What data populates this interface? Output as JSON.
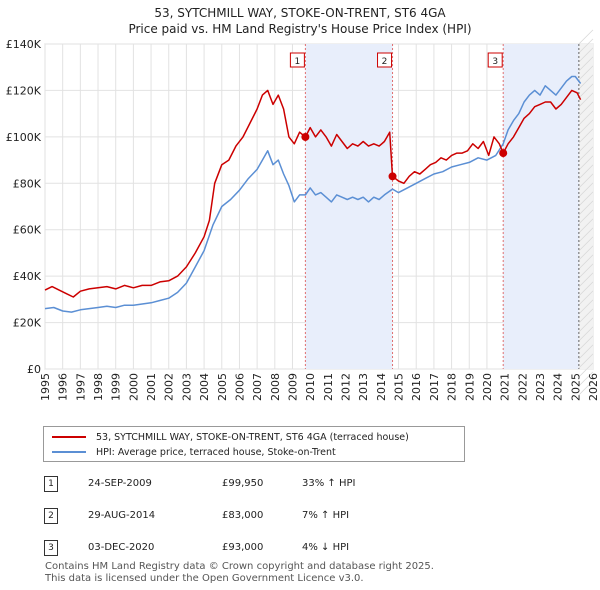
{
  "header": {
    "title_line1": "53, SYTCHMILL WAY, STOKE-ON-TRENT, ST6 4GA",
    "title_line2": "Price paid vs. HM Land Registry's House Price Index (HPI)"
  },
  "chart_data": {
    "type": "line",
    "x_range": [
      1995,
      2026
    ],
    "ylim": [
      0,
      140000
    ],
    "y_ticks": [
      {
        "value": 0,
        "label": "£0"
      },
      {
        "value": 20000,
        "label": "£20K"
      },
      {
        "value": 40000,
        "label": "£40K"
      },
      {
        "value": 60000,
        "label": "£60K"
      },
      {
        "value": 80000,
        "label": "£80K"
      },
      {
        "value": 100000,
        "label": "£100K"
      },
      {
        "value": 120000,
        "label": "£120K"
      },
      {
        "value": 140000,
        "label": "£140K"
      }
    ],
    "x_ticks": [
      "1995",
      "1996",
      "1997",
      "1998",
      "1999",
      "2000",
      "2001",
      "2002",
      "2003",
      "2004",
      "2005",
      "2006",
      "2007",
      "2008",
      "2009",
      "2010",
      "2011",
      "2012",
      "2013",
      "2014",
      "2015",
      "2016",
      "2017",
      "2018",
      "2019",
      "2020",
      "2021",
      "2022",
      "2023",
      "2024",
      "2025",
      "2026"
    ],
    "grid": true,
    "forecast_start": 2025.2,
    "shaded_periods": [
      [
        2009.73,
        2014.66
      ],
      [
        2020.92,
        2025.2
      ]
    ],
    "sale_markers": [
      {
        "label": "1",
        "x": 2009.73,
        "y": 99950
      },
      {
        "label": "2",
        "x": 2014.66,
        "y": 83000
      },
      {
        "label": "3",
        "x": 2020.92,
        "y": 93000
      }
    ],
    "series": [
      {
        "name": "53, SYTCHMILL WAY, STOKE-ON-TRENT, ST6 4GA (terraced house)",
        "color": "#cc0000",
        "points": [
          [
            1995.0,
            34000
          ],
          [
            1995.4,
            35500
          ],
          [
            1995.8,
            34000
          ],
          [
            1996.2,
            32500
          ],
          [
            1996.6,
            31000
          ],
          [
            1997.0,
            33500
          ],
          [
            1997.5,
            34500
          ],
          [
            1998.0,
            35000
          ],
          [
            1998.5,
            35500
          ],
          [
            1999.0,
            34500
          ],
          [
            1999.5,
            36000
          ],
          [
            2000.0,
            35000
          ],
          [
            2000.5,
            36000
          ],
          [
            2001.0,
            36000
          ],
          [
            2001.5,
            37500
          ],
          [
            2002.0,
            38000
          ],
          [
            2002.5,
            40000
          ],
          [
            2003.0,
            44000
          ],
          [
            2003.5,
            50000
          ],
          [
            2004.0,
            57000
          ],
          [
            2004.3,
            64000
          ],
          [
            2004.6,
            80000
          ],
          [
            2005.0,
            88000
          ],
          [
            2005.4,
            90000
          ],
          [
            2005.8,
            96000
          ],
          [
            2006.2,
            100000
          ],
          [
            2006.6,
            106000
          ],
          [
            2007.0,
            112000
          ],
          [
            2007.3,
            118000
          ],
          [
            2007.6,
            120000
          ],
          [
            2007.9,
            114000
          ],
          [
            2008.2,
            118000
          ],
          [
            2008.5,
            112000
          ],
          [
            2008.8,
            100000
          ],
          [
            2009.1,
            97000
          ],
          [
            2009.4,
            102000
          ],
          [
            2009.73,
            99950
          ],
          [
            2010.0,
            104000
          ],
          [
            2010.3,
            100000
          ],
          [
            2010.6,
            103000
          ],
          [
            2010.9,
            100000
          ],
          [
            2011.2,
            96000
          ],
          [
            2011.5,
            101000
          ],
          [
            2011.8,
            98000
          ],
          [
            2012.1,
            95000
          ],
          [
            2012.4,
            97000
          ],
          [
            2012.7,
            96000
          ],
          [
            2013.0,
            98000
          ],
          [
            2013.3,
            96000
          ],
          [
            2013.6,
            97000
          ],
          [
            2013.9,
            96000
          ],
          [
            2014.2,
            98000
          ],
          [
            2014.5,
            102000
          ],
          [
            2014.66,
            83000
          ],
          [
            2015.0,
            81000
          ],
          [
            2015.3,
            80000
          ],
          [
            2015.6,
            83000
          ],
          [
            2015.9,
            85000
          ],
          [
            2016.2,
            84000
          ],
          [
            2016.5,
            86000
          ],
          [
            2016.8,
            88000
          ],
          [
            2017.1,
            89000
          ],
          [
            2017.4,
            91000
          ],
          [
            2017.7,
            90000
          ],
          [
            2018.0,
            92000
          ],
          [
            2018.3,
            93000
          ],
          [
            2018.6,
            93000
          ],
          [
            2018.9,
            94000
          ],
          [
            2019.2,
            97000
          ],
          [
            2019.5,
            95000
          ],
          [
            2019.8,
            98000
          ],
          [
            2020.1,
            92000
          ],
          [
            2020.4,
            100000
          ],
          [
            2020.7,
            97000
          ],
          [
            2020.92,
            93000
          ],
          [
            2021.2,
            97000
          ],
          [
            2021.5,
            100000
          ],
          [
            2021.8,
            104000
          ],
          [
            2022.1,
            108000
          ],
          [
            2022.4,
            110000
          ],
          [
            2022.7,
            113000
          ],
          [
            2023.0,
            114000
          ],
          [
            2023.3,
            115000
          ],
          [
            2023.6,
            115000
          ],
          [
            2023.9,
            112000
          ],
          [
            2024.2,
            114000
          ],
          [
            2024.5,
            117000
          ],
          [
            2024.8,
            120000
          ],
          [
            2025.1,
            119000
          ],
          [
            2025.3,
            116000
          ]
        ]
      },
      {
        "name": "HPI: Average price, terraced house, Stoke-on-Trent",
        "color": "#5b8fd4",
        "points": [
          [
            1995.0,
            26000
          ],
          [
            1995.5,
            26500
          ],
          [
            1996.0,
            25000
          ],
          [
            1996.5,
            24500
          ],
          [
            1997.0,
            25500
          ],
          [
            1997.5,
            26000
          ],
          [
            1998.0,
            26500
          ],
          [
            1998.5,
            27000
          ],
          [
            1999.0,
            26500
          ],
          [
            1999.5,
            27500
          ],
          [
            2000.0,
            27500
          ],
          [
            2000.5,
            28000
          ],
          [
            2001.0,
            28500
          ],
          [
            2001.5,
            29500
          ],
          [
            2002.0,
            30500
          ],
          [
            2002.5,
            33000
          ],
          [
            2003.0,
            37000
          ],
          [
            2003.5,
            44000
          ],
          [
            2004.0,
            51000
          ],
          [
            2004.5,
            62000
          ],
          [
            2005.0,
            70000
          ],
          [
            2005.5,
            73000
          ],
          [
            2006.0,
            77000
          ],
          [
            2006.5,
            82000
          ],
          [
            2007.0,
            86000
          ],
          [
            2007.3,
            90000
          ],
          [
            2007.6,
            94000
          ],
          [
            2007.9,
            88000
          ],
          [
            2008.2,
            90000
          ],
          [
            2008.5,
            84000
          ],
          [
            2008.8,
            79000
          ],
          [
            2009.1,
            72000
          ],
          [
            2009.4,
            75000
          ],
          [
            2009.73,
            75000
          ],
          [
            2010.0,
            78000
          ],
          [
            2010.3,
            75000
          ],
          [
            2010.6,
            76000
          ],
          [
            2010.9,
            74000
          ],
          [
            2011.2,
            72000
          ],
          [
            2011.5,
            75000
          ],
          [
            2011.8,
            74000
          ],
          [
            2012.1,
            73000
          ],
          [
            2012.4,
            74000
          ],
          [
            2012.7,
            73000
          ],
          [
            2013.0,
            74000
          ],
          [
            2013.3,
            72000
          ],
          [
            2013.6,
            74000
          ],
          [
            2013.9,
            73000
          ],
          [
            2014.2,
            75000
          ],
          [
            2014.66,
            77500
          ],
          [
            2015.0,
            76000
          ],
          [
            2015.5,
            78000
          ],
          [
            2016.0,
            80000
          ],
          [
            2016.5,
            82000
          ],
          [
            2017.0,
            84000
          ],
          [
            2017.5,
            85000
          ],
          [
            2018.0,
            87000
          ],
          [
            2018.5,
            88000
          ],
          [
            2019.0,
            89000
          ],
          [
            2019.5,
            91000
          ],
          [
            2020.0,
            90000
          ],
          [
            2020.5,
            92000
          ],
          [
            2020.92,
            97000
          ],
          [
            2021.2,
            103000
          ],
          [
            2021.5,
            107000
          ],
          [
            2021.8,
            110000
          ],
          [
            2022.1,
            115000
          ],
          [
            2022.4,
            118000
          ],
          [
            2022.7,
            120000
          ],
          [
            2023.0,
            118000
          ],
          [
            2023.3,
            122000
          ],
          [
            2023.6,
            120000
          ],
          [
            2023.9,
            118000
          ],
          [
            2024.2,
            121000
          ],
          [
            2024.5,
            124000
          ],
          [
            2024.8,
            126000
          ],
          [
            2025.0,
            126000
          ],
          [
            2025.3,
            123000
          ]
        ]
      }
    ]
  },
  "legend": {
    "property_label": "53, SYTCHMILL WAY, STOKE-ON-TRENT, ST6 4GA (terraced house)",
    "hpi_label": "HPI: Average price, terraced house, Stoke-on-Trent",
    "property_color": "#cc0000",
    "hpi_color": "#5b8fd4"
  },
  "transactions": [
    {
      "num": "1",
      "date": "24-SEP-2009",
      "price": "£99,950",
      "hpi": "33% ↑ HPI"
    },
    {
      "num": "2",
      "date": "29-AUG-2014",
      "price": "£83,000",
      "hpi": "7% ↑ HPI"
    },
    {
      "num": "3",
      "date": "03-DEC-2020",
      "price": "£93,000",
      "hpi": "4% ↓ HPI"
    }
  ],
  "footer": {
    "line1": "Contains HM Land Registry data © Crown copyright and database right 2025.",
    "line2": "This data is licensed under the Open Government Licence v3.0."
  }
}
